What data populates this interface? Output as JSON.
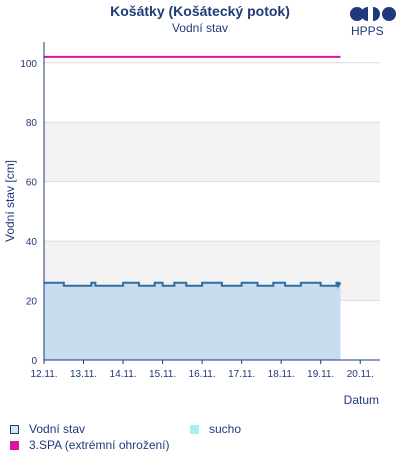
{
  "title": "Košátky (Košátecký potok)",
  "subtitle": "Vodní stav",
  "logo_text": "HPPS",
  "chart_data": {
    "type": "line",
    "ylabel": "Vodní stav [cm]",
    "xlabel": "Datum",
    "ylim": [
      0,
      107
    ],
    "xlim": [
      0,
      8.5
    ],
    "yticks": [
      0,
      20,
      40,
      60,
      80,
      100
    ],
    "xticks": [
      "12.11.",
      "13.11.",
      "14.11.",
      "15.11.",
      "16.11.",
      "17.11.",
      "18.11.",
      "19.11.",
      "20.11."
    ],
    "bands": [
      {
        "name": "suchoband1",
        "from": 20,
        "to": 40,
        "color": "#f2f2f2"
      },
      {
        "name": "suchoband2",
        "from": 60,
        "to": 80,
        "color": "#f2f2f2"
      }
    ],
    "series": [
      {
        "name": "Vodní stav",
        "color": "#2e6fa3",
        "fill": "#c7dcef",
        "x": [
          0,
          0.5,
          0.5,
          1.2,
          1.2,
          1.3,
          1.3,
          2.0,
          2.0,
          2.4,
          2.4,
          2.8,
          2.8,
          3.0,
          3.0,
          3.3,
          3.3,
          3.6,
          3.6,
          4.0,
          4.0,
          4.5,
          4.5,
          5.0,
          5.0,
          5.4,
          5.4,
          5.8,
          5.8,
          6.1,
          6.1,
          6.5,
          6.5,
          7.0,
          7.0,
          7.4,
          7.4,
          7.45,
          7.45,
          7.5
        ],
        "values": [
          26,
          26,
          25,
          25,
          26,
          26,
          25,
          25,
          26,
          26,
          25,
          25,
          26,
          26,
          25,
          25,
          26,
          26,
          25,
          25,
          26,
          26,
          25,
          25,
          26,
          26,
          25,
          25,
          26,
          26,
          25,
          25,
          26,
          26,
          25,
          25,
          26,
          26,
          25,
          26
        ]
      },
      {
        "name": "3.SPA (extrémní ohrožení)",
        "color": "#e0119c",
        "x": [
          0,
          7.5
        ],
        "values": [
          102,
          102
        ]
      }
    ],
    "legend": [
      {
        "label": "Vodní stav",
        "swatch": "outline",
        "color": "#2e6fa3"
      },
      {
        "label": "sucho",
        "swatch": "fill",
        "color": "#a8f0f0"
      },
      {
        "label": "3.SPA (extrémní ohrožení)",
        "swatch": "fill",
        "color": "#e0119c"
      }
    ],
    "legend_position": "bottom"
  }
}
